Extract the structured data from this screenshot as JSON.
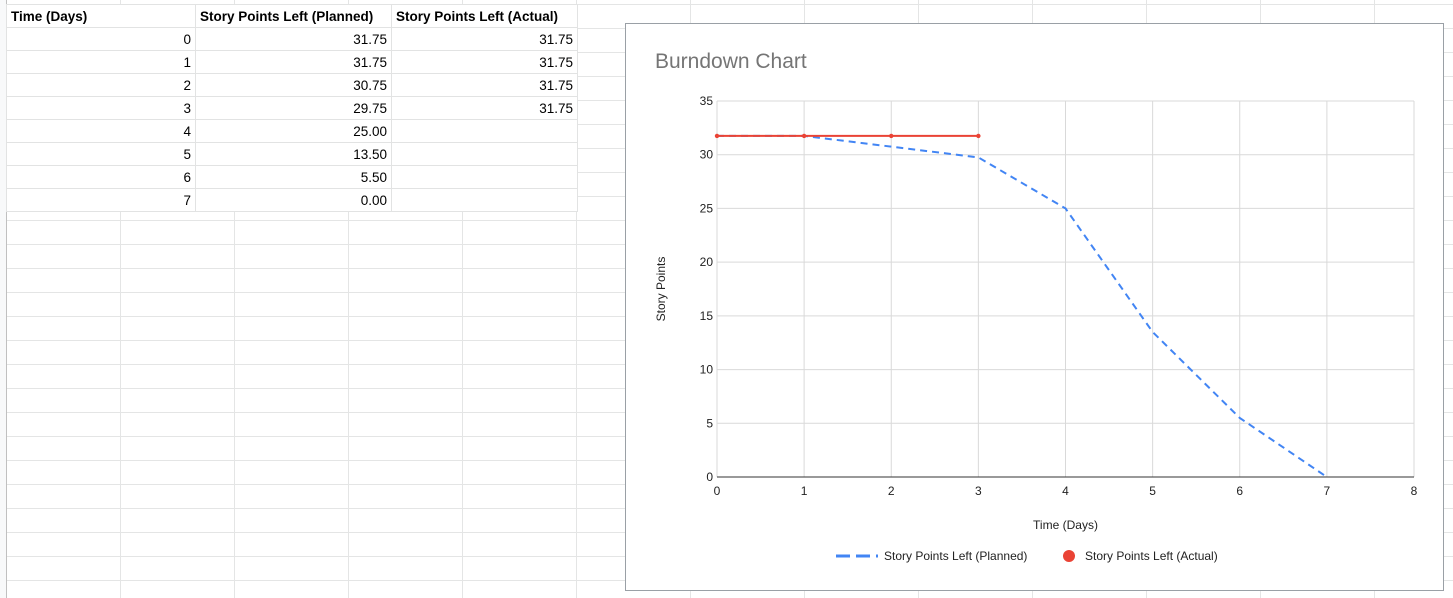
{
  "sheet": {
    "headers": [
      "Time (Days)",
      "Story Points Left (Planned)",
      "Story Points Left (Actual)"
    ],
    "rows": [
      [
        "0",
        "31.75",
        "31.75"
      ],
      [
        "1",
        "31.75",
        "31.75"
      ],
      [
        "2",
        "30.75",
        "31.75"
      ],
      [
        "3",
        "29.75",
        "31.75"
      ],
      [
        "4",
        "25.00",
        ""
      ],
      [
        "5",
        "13.50",
        ""
      ],
      [
        "6",
        "5.50",
        ""
      ],
      [
        "7",
        "0.00",
        ""
      ]
    ]
  },
  "chart_data": {
    "type": "line",
    "title": "Burndown Chart",
    "xlabel": "Time (Days)",
    "ylabel": "Story Points",
    "xlim": [
      0,
      8
    ],
    "ylim": [
      0,
      35
    ],
    "xticks": [
      "0",
      "1",
      "2",
      "3",
      "4",
      "5",
      "6",
      "7",
      "8"
    ],
    "yticks": [
      "0",
      "5",
      "10",
      "15",
      "20",
      "25",
      "30",
      "35"
    ],
    "grid": true,
    "legend_position": "bottom",
    "series": [
      {
        "name": "Story Points Left (Planned)",
        "x": [
          0,
          1,
          2,
          3,
          4,
          5,
          6,
          7
        ],
        "y": [
          31.75,
          31.75,
          30.75,
          29.75,
          25.0,
          13.5,
          5.5,
          0.0
        ],
        "color": "#4285f4",
        "style": "dashed"
      },
      {
        "name": "Story Points Left (Actual)",
        "x": [
          0,
          1,
          2,
          3
        ],
        "y": [
          31.75,
          31.75,
          31.75,
          31.75
        ],
        "color": "#ea4335",
        "style": "solid-with-points"
      }
    ]
  }
}
